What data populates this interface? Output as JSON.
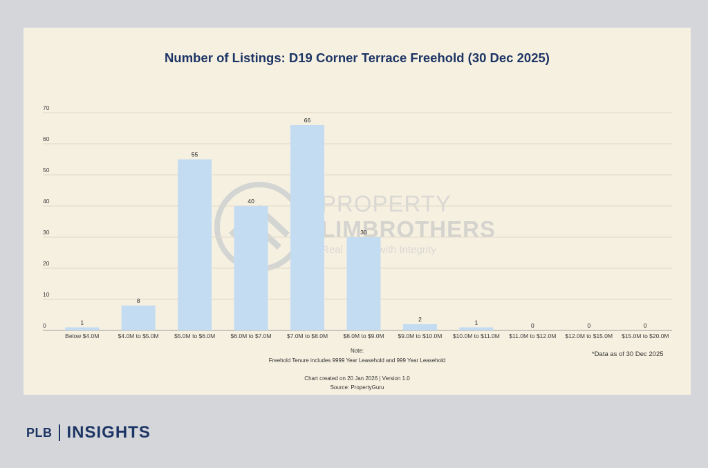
{
  "header": {
    "title": "Number of Listings: D19 Corner Terrace Freehold (30 Dec 2025)"
  },
  "watermark": {
    "line1": "PROPERTY",
    "line2": "LIMBROTHERS",
    "tagline": "Real Estate with Integrity"
  },
  "notes": {
    "note_label": "Note:",
    "note_text": "Freehold Tenure includes 9999 Year Leasehold and 999 Year Leasehold",
    "created": "Chart created on 20 Jan 2026 | Version 1.0",
    "source": "Source: PropertyGuru",
    "data_as_of": "*Data as of 30 Dec 2025"
  },
  "footer": {
    "brand": "PLB",
    "section": "INSIGHTS"
  },
  "colors": {
    "bar": "#c4dcf2",
    "title": "#1d3565",
    "background": "#f6f0e1",
    "page": "#d4d6d9"
  },
  "chart_data": {
    "type": "bar",
    "title": "Number of Listings: D19 Corner Terrace Freehold (30 Dec 2025)",
    "xlabel": "",
    "ylabel": "",
    "categories": [
      "Below $4.0M",
      "$4.0M to $5.0M",
      "$5.0M to $6.0M",
      "$6.0M to $7.0M",
      "$7.0M to $8.0M",
      "$8.0M to $9.0M",
      "$9.0M to $10.0M",
      "$10.0M to $11.0M",
      "$11.0M to $12.0M",
      "$12.0M to $15.0M",
      "$15.0M to $20.0M"
    ],
    "values": [
      1,
      8,
      55,
      40,
      66,
      30,
      2,
      1,
      0,
      0,
      0
    ],
    "ylim": [
      0,
      70
    ],
    "yticks": [
      0,
      10,
      20,
      30,
      40,
      50,
      60,
      70
    ],
    "grid": true,
    "legend": "none",
    "data_labels": true
  }
}
